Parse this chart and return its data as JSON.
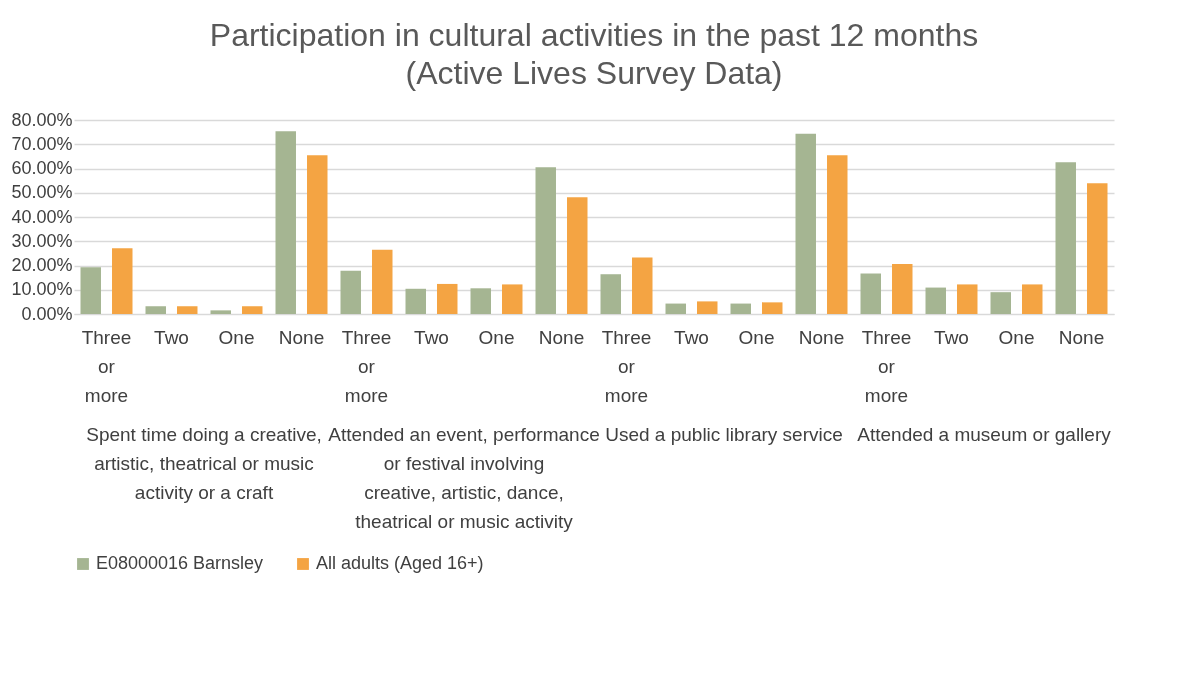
{
  "chart_data": {
    "type": "bar",
    "title": "Participation in cultural activities in the past 12 months",
    "subtitle": "(Active Lives Survey Data)",
    "categories": [
      "Three or more",
      "Two",
      "One",
      "None",
      "Three or more",
      "Two",
      "One",
      "None",
      "Three or more",
      "Two",
      "One",
      "None",
      "Three or more",
      "Two",
      "One",
      "None"
    ],
    "annotations": [
      "Spent time doing a creative, artistic, theatrical or music activity or a craft",
      "Attended an event, performance or festival involving creative, artistic, dance, theatrical or music activity",
      "Used a public library service",
      "Attended a museum or gallery"
    ],
    "series": [
      {
        "name": "E08000016 Barnsley",
        "color": "#a5b592",
        "values": [
          19.3,
          3.2,
          1.5,
          75.4,
          17.8,
          10.4,
          10.6,
          60.5,
          16.4,
          4.3,
          4.3,
          74.3,
          16.7,
          10.9,
          9.0,
          62.6
        ]
      },
      {
        "name": "All adults (Aged 16+)",
        "color": "#f4a443",
        "values": [
          27.1,
          3.2,
          3.2,
          65.5,
          26.5,
          12.4,
          12.2,
          48.1,
          23.3,
          5.2,
          4.8,
          65.5,
          20.6,
          12.2,
          12.2,
          53.9
        ]
      }
    ],
    "ylim": [
      0,
      80
    ],
    "yticks": [
      {
        "value": 0,
        "label": "0.00%"
      },
      {
        "value": 10,
        "label": "10.00%"
      },
      {
        "value": 20,
        "label": "20.00%"
      },
      {
        "value": 30,
        "label": "30.00%"
      },
      {
        "value": 40,
        "label": "40.00%"
      },
      {
        "value": 50,
        "label": "50.00%"
      },
      {
        "value": 60,
        "label": "60.00%"
      },
      {
        "value": 70,
        "label": "70.00%"
      },
      {
        "value": 80,
        "label": "80.00%"
      }
    ],
    "grid": "y",
    "legend": "bottom"
  }
}
